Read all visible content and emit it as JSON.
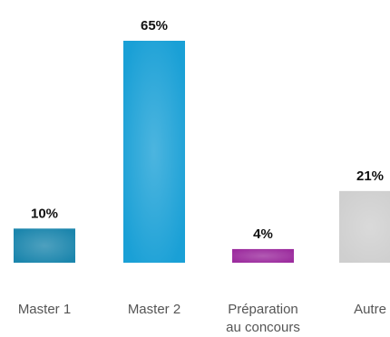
{
  "chart_data": {
    "type": "bar",
    "categories": [
      "Master 1",
      "Master 2",
      "Préparation au concours",
      "Autre"
    ],
    "category_lines": [
      [
        "Master 1"
      ],
      [
        "Master 2"
      ],
      [
        "Préparation",
        "au concours"
      ],
      [
        "Autre"
      ]
    ],
    "values": [
      10,
      65,
      4,
      21
    ],
    "value_labels": [
      "10%",
      "65%",
      "4%",
      "21%"
    ],
    "colors": [
      "#1c86ad",
      "#1aa0d6",
      "#9c2c9e",
      "#cfcfcf"
    ],
    "unit": "%",
    "ylim": [
      0,
      65
    ],
    "title": "",
    "xlabel": "",
    "ylabel": "",
    "grid": false,
    "legend": false
  }
}
